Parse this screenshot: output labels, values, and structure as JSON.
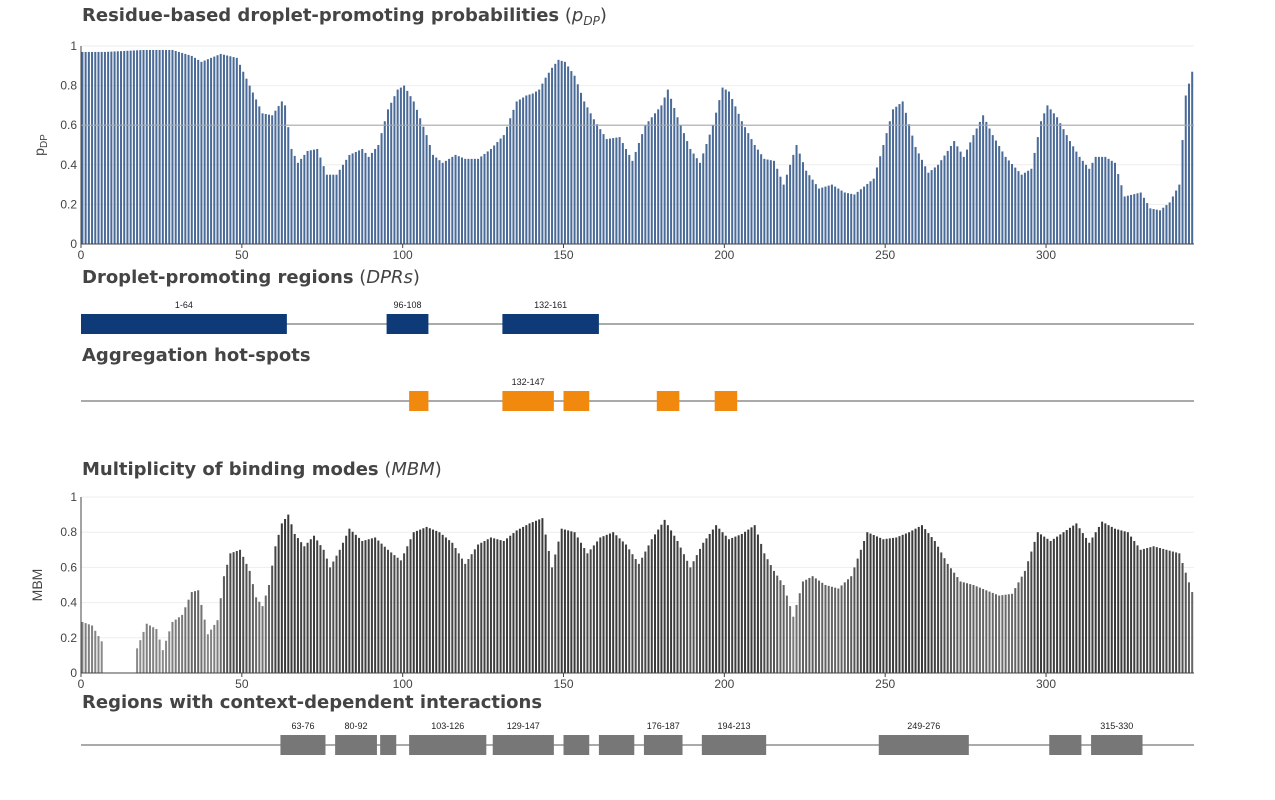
{
  "colors": {
    "pdp_bar": "#4a6a97",
    "dpr_bar": "#0e3a78",
    "hotspot_bar": "#f0890e",
    "mbm_bar_high": "#3a3a3a",
    "mbm_bar_low": "#8a8a8a",
    "context_bar": "#777777",
    "threshold_line": "#aaaaaa",
    "axis_line": "#444444"
  },
  "titles": {
    "pdp": {
      "bold": "Residue-based droplet-promoting probabilities",
      "sym": "p",
      "sub": "DP"
    },
    "dpr": {
      "bold": "Droplet-promoting regions",
      "abbr": "DPRs"
    },
    "hotspots": {
      "bold": "Aggregation hot-spots"
    },
    "mbm": {
      "bold": "Multiplicity of binding modes",
      "abbr": "MBM"
    },
    "context": {
      "bold": "Regions with context-dependent interactions"
    }
  },
  "chart_data": [
    {
      "type": "bar",
      "name": "pdp",
      "title": "Residue-based droplet-promoting probabilities (pDP)",
      "xlabel": "",
      "ylabel": "pDP",
      "xlim": [
        0,
        346
      ],
      "ylim": [
        0,
        1
      ],
      "xticks": [
        "0",
        "50",
        "100",
        "150",
        "200",
        "250",
        "300"
      ],
      "yticks": [
        "0",
        "0.2",
        "0.4",
        "0.6",
        "0.8",
        "1"
      ],
      "threshold": 0.6,
      "profile_x": [
        1,
        8,
        20,
        29,
        35,
        38,
        44,
        49,
        53,
        57,
        60,
        63,
        64,
        66,
        68,
        71,
        74,
        77,
        80,
        84,
        88,
        90,
        93,
        96,
        99,
        101,
        104,
        108,
        110,
        113,
        117,
        120,
        124,
        128,
        132,
        136,
        139,
        141,
        143,
        145,
        147,
        149,
        151,
        154,
        157,
        160,
        164,
        168,
        172,
        176,
        181,
        183,
        186,
        190,
        193,
        197,
        200,
        202,
        206,
        210,
        213,
        216,
        219,
        223,
        226,
        230,
        234,
        238,
        241,
        244,
        247,
        250,
        253,
        256,
        260,
        264,
        267,
        270,
        272,
        275,
        278,
        281,
        284,
        288,
        293,
        296,
        299,
        301,
        304,
        308,
        311,
        314,
        316,
        319,
        322,
        325,
        330,
        333,
        336,
        339,
        342,
        344,
        346
      ],
      "profile_y": [
        0.97,
        0.97,
        0.98,
        0.98,
        0.95,
        0.92,
        0.96,
        0.94,
        0.8,
        0.66,
        0.65,
        0.72,
        0.7,
        0.48,
        0.41,
        0.47,
        0.48,
        0.35,
        0.35,
        0.45,
        0.48,
        0.44,
        0.5,
        0.68,
        0.78,
        0.8,
        0.72,
        0.55,
        0.45,
        0.41,
        0.45,
        0.43,
        0.43,
        0.48,
        0.55,
        0.72,
        0.75,
        0.76,
        0.78,
        0.84,
        0.89,
        0.93,
        0.92,
        0.85,
        0.72,
        0.63,
        0.53,
        0.54,
        0.42,
        0.6,
        0.7,
        0.78,
        0.64,
        0.48,
        0.41,
        0.6,
        0.79,
        0.77,
        0.62,
        0.5,
        0.43,
        0.42,
        0.3,
        0.5,
        0.37,
        0.28,
        0.3,
        0.26,
        0.25,
        0.29,
        0.33,
        0.5,
        0.68,
        0.72,
        0.49,
        0.36,
        0.4,
        0.47,
        0.52,
        0.44,
        0.55,
        0.65,
        0.55,
        0.44,
        0.35,
        0.38,
        0.62,
        0.7,
        0.64,
        0.52,
        0.44,
        0.38,
        0.44,
        0.44,
        0.41,
        0.24,
        0.26,
        0.18,
        0.17,
        0.21,
        0.3,
        0.75,
        0.87
      ]
    },
    {
      "type": "bar",
      "name": "mbm",
      "title": "Multiplicity of binding modes (MBM)",
      "xlabel": "",
      "ylabel": "MBM",
      "xlim": [
        0,
        346
      ],
      "ylim": [
        0,
        1
      ],
      "xticks": [
        "0",
        "50",
        "100",
        "150",
        "200",
        "250",
        "300"
      ],
      "yticks": [
        "0",
        "0.2",
        "0.4",
        "0.6",
        "0.8",
        "1"
      ],
      "gap_residues": [
        8,
        17
      ],
      "profile_x": [
        1,
        4,
        7,
        8,
        18,
        21,
        24,
        26,
        29,
        32,
        35,
        37,
        40,
        43,
        45,
        47,
        50,
        53,
        55,
        57,
        59,
        61,
        63,
        65,
        67,
        70,
        73,
        76,
        78,
        81,
        84,
        88,
        92,
        96,
        100,
        104,
        108,
        112,
        116,
        120,
        124,
        128,
        132,
        136,
        140,
        144,
        147,
        150,
        154,
        158,
        162,
        166,
        170,
        174,
        178,
        182,
        186,
        190,
        194,
        198,
        202,
        206,
        210,
        213,
        216,
        219,
        222,
        225,
        228,
        232,
        236,
        240,
        245,
        250,
        254,
        258,
        262,
        266,
        270,
        274,
        278,
        282,
        286,
        290,
        294,
        298,
        302,
        306,
        310,
        314,
        318,
        322,
        326,
        330,
        334,
        338,
        342,
        346
      ],
      "profile_y": [
        0.29,
        0.27,
        0.18,
        0.0,
        0.14,
        0.28,
        0.25,
        0.13,
        0.29,
        0.33,
        0.46,
        0.47,
        0.22,
        0.3,
        0.55,
        0.68,
        0.7,
        0.58,
        0.43,
        0.38,
        0.5,
        0.72,
        0.85,
        0.9,
        0.79,
        0.72,
        0.78,
        0.7,
        0.6,
        0.7,
        0.82,
        0.75,
        0.77,
        0.7,
        0.64,
        0.8,
        0.83,
        0.8,
        0.74,
        0.62,
        0.73,
        0.77,
        0.75,
        0.81,
        0.85,
        0.88,
        0.6,
        0.82,
        0.8,
        0.68,
        0.77,
        0.8,
        0.73,
        0.62,
        0.76,
        0.87,
        0.75,
        0.6,
        0.74,
        0.84,
        0.76,
        0.79,
        0.84,
        0.68,
        0.58,
        0.5,
        0.32,
        0.52,
        0.55,
        0.5,
        0.48,
        0.55,
        0.8,
        0.76,
        0.77,
        0.8,
        0.84,
        0.75,
        0.62,
        0.52,
        0.5,
        0.47,
        0.44,
        0.45,
        0.58,
        0.8,
        0.75,
        0.8,
        0.85,
        0.74,
        0.86,
        0.82,
        0.8,
        0.7,
        0.72,
        0.7,
        0.68,
        0.46
      ]
    },
    {
      "type": "segments",
      "name": "dpr",
      "title": "Droplet-promoting regions (DPRs)",
      "segments": [
        {
          "start": 1,
          "end": 64,
          "label": "1-64"
        },
        {
          "start": 96,
          "end": 108,
          "label": "96-108"
        },
        {
          "start": 132,
          "end": 161,
          "label": "132-161"
        }
      ]
    },
    {
      "type": "segments",
      "name": "hotspots",
      "title": "Aggregation hot-spots",
      "segments": [
        {
          "start": 103,
          "end": 108,
          "label": ""
        },
        {
          "start": 132,
          "end": 147,
          "label": "132-147"
        },
        {
          "start": 151,
          "end": 158,
          "label": ""
        },
        {
          "start": 180,
          "end": 186,
          "label": ""
        },
        {
          "start": 198,
          "end": 204,
          "label": ""
        }
      ]
    },
    {
      "type": "segments",
      "name": "context",
      "title": "Regions with context-dependent interactions",
      "segments": [
        {
          "start": 63,
          "end": 76,
          "label": "63-76"
        },
        {
          "start": 80,
          "end": 92,
          "label": "80-92"
        },
        {
          "start": 94,
          "end": 98,
          "label": ""
        },
        {
          "start": 103,
          "end": 126,
          "label": "103-126"
        },
        {
          "start": 129,
          "end": 147,
          "label": "129-147"
        },
        {
          "start": 151,
          "end": 158,
          "label": ""
        },
        {
          "start": 162,
          "end": 172,
          "label": ""
        },
        {
          "start": 176,
          "end": 187,
          "label": "176-187"
        },
        {
          "start": 194,
          "end": 213,
          "label": "194-213"
        },
        {
          "start": 249,
          "end": 276,
          "label": "249-276"
        },
        {
          "start": 302,
          "end": 311,
          "label": ""
        },
        {
          "start": 315,
          "end": 330,
          "label": "315-330"
        }
      ]
    }
  ]
}
